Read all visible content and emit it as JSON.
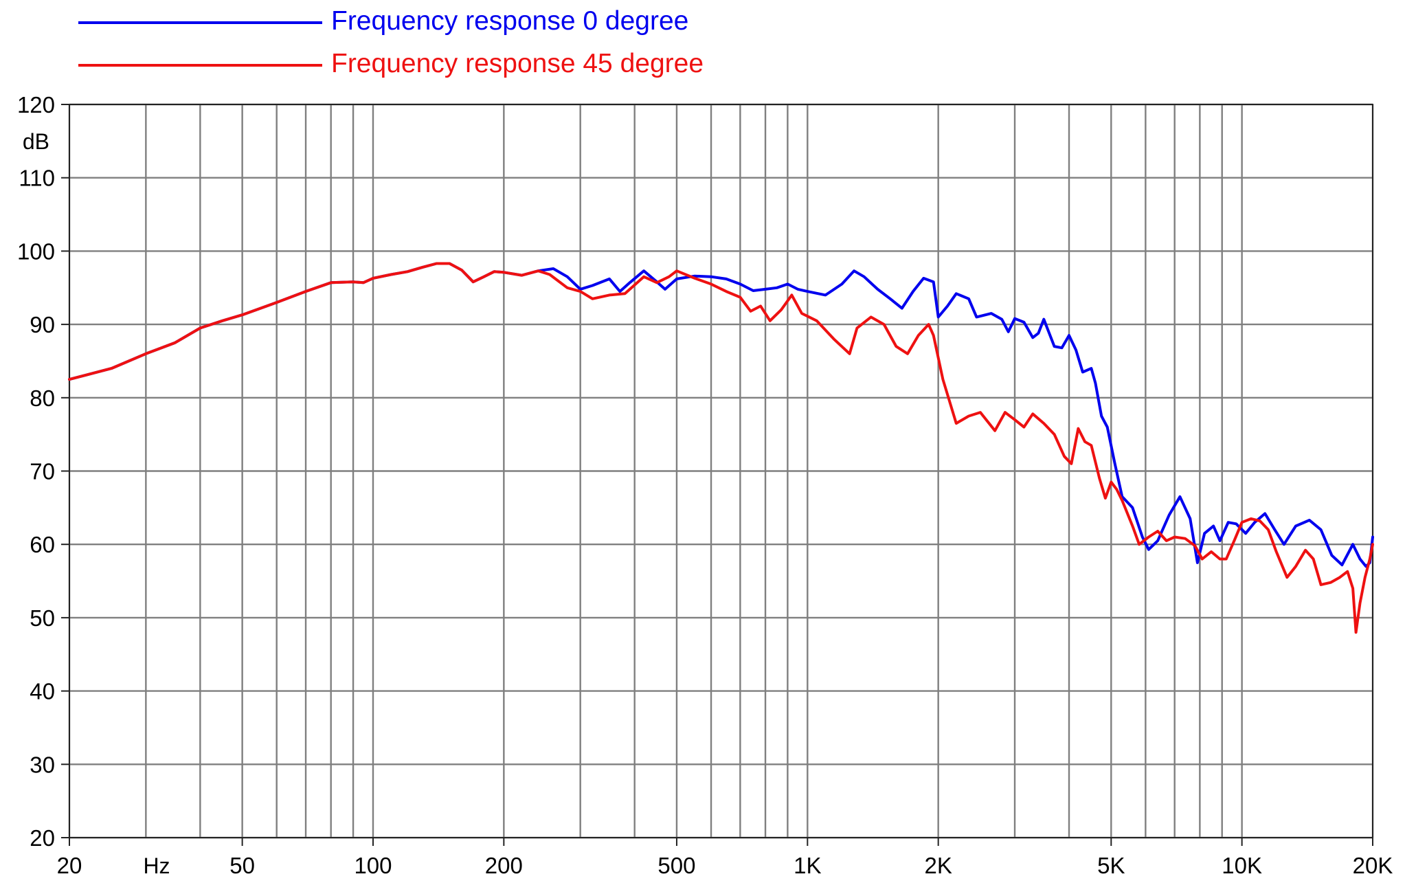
{
  "chart_data": {
    "type": "line",
    "title": "",
    "xlabel": "",
    "ylabel": "",
    "x_scale": "log",
    "xlim": [
      20,
      20000
    ],
    "ylim": [
      20,
      120
    ],
    "grid": true,
    "legend_position": "top-left",
    "x_unit_label": "Hz",
    "y_unit_label": "dB",
    "x_ticks": [
      {
        "value": 20,
        "label": "20"
      },
      {
        "value": 50,
        "label": "50"
      },
      {
        "value": 100,
        "label": "100"
      },
      {
        "value": 200,
        "label": "200"
      },
      {
        "value": 500,
        "label": "500"
      },
      {
        "value": 1000,
        "label": "1K"
      },
      {
        "value": 2000,
        "label": "2K"
      },
      {
        "value": 5000,
        "label": "5K"
      },
      {
        "value": 10000,
        "label": "10K"
      },
      {
        "value": 20000,
        "label": "20K"
      }
    ],
    "y_ticks": [
      {
        "value": 120,
        "label": "120"
      },
      {
        "value": 110,
        "label": "110"
      },
      {
        "value": 100,
        "label": "100"
      },
      {
        "value": 90,
        "label": "90"
      },
      {
        "value": 80,
        "label": "80"
      },
      {
        "value": 70,
        "label": "70"
      },
      {
        "value": 60,
        "label": "60"
      },
      {
        "value": 50,
        "label": "50"
      },
      {
        "value": 40,
        "label": "40"
      },
      {
        "value": 30,
        "label": "30"
      },
      {
        "value": 20,
        "label": "20"
      }
    ],
    "series": [
      {
        "name": "Frequency response 0 degree",
        "color": "#0000ee",
        "points": [
          [
            20,
            82.5
          ],
          [
            25,
            84
          ],
          [
            30,
            86
          ],
          [
            35,
            87.5
          ],
          [
            40,
            89.5
          ],
          [
            45,
            90.5
          ],
          [
            50,
            91.3
          ],
          [
            60,
            93
          ],
          [
            70,
            94.5
          ],
          [
            80,
            95.7
          ],
          [
            90,
            95.8
          ],
          [
            95,
            95.7
          ],
          [
            100,
            96.3
          ],
          [
            110,
            96.8
          ],
          [
            120,
            97.2
          ],
          [
            130,
            97.8
          ],
          [
            140,
            98.3
          ],
          [
            150,
            98.3
          ],
          [
            160,
            97.4
          ],
          [
            170,
            95.8
          ],
          [
            180,
            96.5
          ],
          [
            190,
            97.2
          ],
          [
            200,
            97.1
          ],
          [
            220,
            96.7
          ],
          [
            240,
            97.3
          ],
          [
            260,
            97.6
          ],
          [
            280,
            96.5
          ],
          [
            300,
            94.8
          ],
          [
            320,
            95.3
          ],
          [
            350,
            96.2
          ],
          [
            370,
            94.5
          ],
          [
            390,
            95.7
          ],
          [
            420,
            97.3
          ],
          [
            450,
            95.8
          ],
          [
            470,
            94.8
          ],
          [
            500,
            96.2
          ],
          [
            550,
            96.6
          ],
          [
            600,
            96.5
          ],
          [
            650,
            96.2
          ],
          [
            700,
            95.5
          ],
          [
            750,
            94.6
          ],
          [
            800,
            94.8
          ],
          [
            850,
            95.0
          ],
          [
            900,
            95.5
          ],
          [
            950,
            94.8
          ],
          [
            1000,
            94.5
          ],
          [
            1100,
            94.0
          ],
          [
            1200,
            95.5
          ],
          [
            1280,
            97.3
          ],
          [
            1350,
            96.5
          ],
          [
            1450,
            94.8
          ],
          [
            1550,
            93.5
          ],
          [
            1650,
            92.2
          ],
          [
            1750,
            94.5
          ],
          [
            1850,
            96.3
          ],
          [
            1950,
            95.8
          ],
          [
            2000,
            91.0
          ],
          [
            2100,
            92.5
          ],
          [
            2200,
            94.2
          ],
          [
            2350,
            93.5
          ],
          [
            2450,
            91.0
          ],
          [
            2650,
            91.5
          ],
          [
            2800,
            90.7
          ],
          [
            2900,
            89.0
          ],
          [
            3000,
            90.8
          ],
          [
            3150,
            90.3
          ],
          [
            3300,
            88.2
          ],
          [
            3400,
            88.8
          ],
          [
            3500,
            90.7
          ],
          [
            3700,
            87.0
          ],
          [
            3850,
            86.8
          ],
          [
            4000,
            88.5
          ],
          [
            4150,
            86.5
          ],
          [
            4300,
            83.5
          ],
          [
            4500,
            84.0
          ],
          [
            4600,
            82.0
          ],
          [
            4750,
            77.5
          ],
          [
            4900,
            76.0
          ],
          [
            5100,
            71.0
          ],
          [
            5300,
            66.5
          ],
          [
            5600,
            65.0
          ],
          [
            5900,
            61.0
          ],
          [
            6100,
            59.3
          ],
          [
            6400,
            60.5
          ],
          [
            6800,
            64.0
          ],
          [
            7200,
            66.5
          ],
          [
            7600,
            63.5
          ],
          [
            7900,
            57.5
          ],
          [
            8200,
            61.5
          ],
          [
            8600,
            62.5
          ],
          [
            8900,
            60.5
          ],
          [
            9300,
            63.0
          ],
          [
            9700,
            62.8
          ],
          [
            10200,
            61.5
          ],
          [
            10700,
            63.0
          ],
          [
            11300,
            64.2
          ],
          [
            11900,
            62.0
          ],
          [
            12500,
            60.0
          ],
          [
            13300,
            62.5
          ],
          [
            14300,
            63.3
          ],
          [
            15200,
            62.0
          ],
          [
            16100,
            58.5
          ],
          [
            17000,
            57.2
          ],
          [
            18000,
            60.0
          ],
          [
            18700,
            58.0
          ],
          [
            19300,
            57.0
          ],
          [
            19700,
            57.5
          ],
          [
            20000,
            61.0
          ]
        ]
      },
      {
        "name": "Frequency response 45 degree",
        "color": "#ee1111",
        "points": [
          [
            20,
            82.5
          ],
          [
            25,
            84
          ],
          [
            30,
            86
          ],
          [
            35,
            87.5
          ],
          [
            40,
            89.5
          ],
          [
            45,
            90.5
          ],
          [
            50,
            91.3
          ],
          [
            60,
            93
          ],
          [
            70,
            94.5
          ],
          [
            80,
            95.7
          ],
          [
            90,
            95.8
          ],
          [
            95,
            95.7
          ],
          [
            100,
            96.3
          ],
          [
            110,
            96.8
          ],
          [
            120,
            97.2
          ],
          [
            130,
            97.8
          ],
          [
            140,
            98.3
          ],
          [
            150,
            98.3
          ],
          [
            160,
            97.4
          ],
          [
            170,
            95.8
          ],
          [
            180,
            96.5
          ],
          [
            190,
            97.2
          ],
          [
            200,
            97.1
          ],
          [
            220,
            96.7
          ],
          [
            240,
            97.3
          ],
          [
            255,
            96.8
          ],
          [
            280,
            95.0
          ],
          [
            300,
            94.5
          ],
          [
            320,
            93.5
          ],
          [
            350,
            94.0
          ],
          [
            380,
            94.2
          ],
          [
            420,
            96.5
          ],
          [
            450,
            95.7
          ],
          [
            480,
            96.5
          ],
          [
            500,
            97.3
          ],
          [
            550,
            96.3
          ],
          [
            600,
            95.5
          ],
          [
            650,
            94.5
          ],
          [
            700,
            93.7
          ],
          [
            740,
            91.8
          ],
          [
            780,
            92.5
          ],
          [
            820,
            90.5
          ],
          [
            870,
            92.0
          ],
          [
            920,
            94.0
          ],
          [
            970,
            91.5
          ],
          [
            1050,
            90.5
          ],
          [
            1150,
            88.0
          ],
          [
            1250,
            86.0
          ],
          [
            1300,
            89.5
          ],
          [
            1400,
            91.0
          ],
          [
            1500,
            90.0
          ],
          [
            1600,
            87.0
          ],
          [
            1700,
            86.0
          ],
          [
            1800,
            88.5
          ],
          [
            1900,
            90.0
          ],
          [
            1950,
            88.5
          ],
          [
            2050,
            82.5
          ],
          [
            2200,
            76.5
          ],
          [
            2350,
            77.5
          ],
          [
            2500,
            78.0
          ],
          [
            2700,
            75.5
          ],
          [
            2850,
            78.0
          ],
          [
            3000,
            77.0
          ],
          [
            3150,
            76.0
          ],
          [
            3300,
            77.8
          ],
          [
            3500,
            76.5
          ],
          [
            3700,
            75.0
          ],
          [
            3900,
            72.0
          ],
          [
            4050,
            71.0
          ],
          [
            4200,
            75.8
          ],
          [
            4350,
            74.0
          ],
          [
            4500,
            73.5
          ],
          [
            4700,
            69.0
          ],
          [
            4850,
            66.3
          ],
          [
            5000,
            68.5
          ],
          [
            5150,
            67.5
          ],
          [
            5300,
            66.0
          ],
          [
            5600,
            62.5
          ],
          [
            5800,
            60.0
          ],
          [
            6100,
            61.0
          ],
          [
            6400,
            61.8
          ],
          [
            6700,
            60.5
          ],
          [
            7000,
            61.0
          ],
          [
            7400,
            60.8
          ],
          [
            7800,
            59.8
          ],
          [
            8100,
            58.0
          ],
          [
            8500,
            59.0
          ],
          [
            8900,
            58.0
          ],
          [
            9200,
            58.0
          ],
          [
            9600,
            60.5
          ],
          [
            10000,
            63.0
          ],
          [
            10500,
            63.5
          ],
          [
            11000,
            63.2
          ],
          [
            11500,
            62.0
          ],
          [
            12000,
            59.0
          ],
          [
            12700,
            55.5
          ],
          [
            13300,
            57.0
          ],
          [
            14000,
            59.2
          ],
          [
            14600,
            58.0
          ],
          [
            15200,
            54.5
          ],
          [
            16000,
            54.8
          ],
          [
            16800,
            55.5
          ],
          [
            17500,
            56.3
          ],
          [
            18000,
            54.0
          ],
          [
            18300,
            48.0
          ],
          [
            18700,
            52.0
          ],
          [
            19200,
            55.5
          ],
          [
            19700,
            58.0
          ],
          [
            20000,
            60.0
          ]
        ]
      }
    ]
  }
}
